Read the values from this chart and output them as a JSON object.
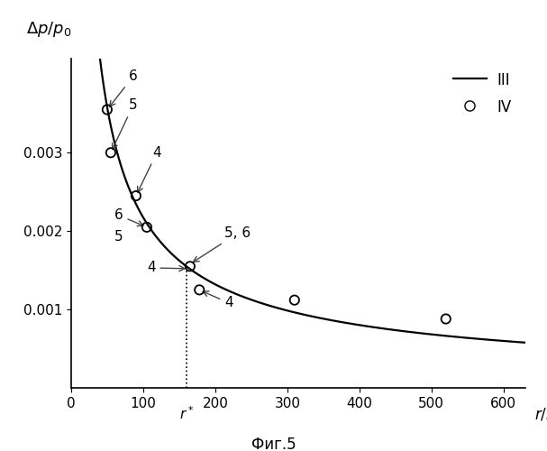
{
  "title_fig": "Фиг.5",
  "xlim": [
    0,
    630
  ],
  "ylim": [
    0,
    0.0042
  ],
  "yticks": [
    0.001,
    0.002,
    0.003
  ],
  "xticks": [
    0,
    100,
    200,
    300,
    400,
    500,
    600
  ],
  "r_star": 160,
  "curve_xstart": 5,
  "curve_xend": 630,
  "curve_C_base_x": 160,
  "curve_C_base_y": 0.00155,
  "curve_power": 0.72,
  "scatter_IV_x": [
    50,
    55,
    90,
    105,
    165,
    178,
    310,
    520
  ],
  "scatter_IV_y": [
    0.00355,
    0.003,
    0.00245,
    0.00205,
    0.00155,
    0.00125,
    0.00112,
    0.00088
  ],
  "legend_line_label": "III",
  "legend_circle_label": "IV",
  "background_color": "#ffffff",
  "line_color": "#000000",
  "scatter_color": "#000000"
}
